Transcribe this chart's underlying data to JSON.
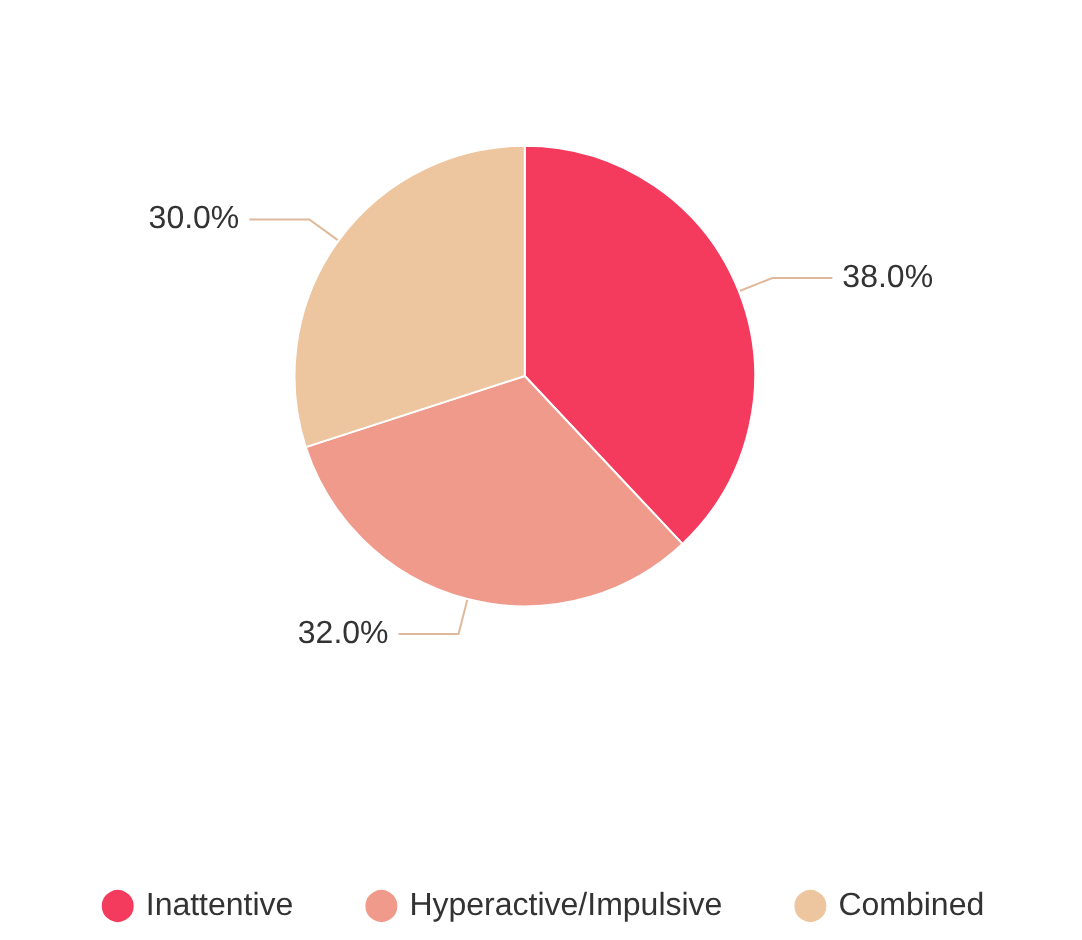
{
  "chart_data": {
    "type": "pie",
    "categories": [
      "Inattentive",
      "Hyperactive/Impulsive",
      "Combined"
    ],
    "values": [
      38.0,
      32.0,
      30.0
    ],
    "colors": [
      "#f43b5e",
      "#f09a8c",
      "#edc59f"
    ],
    "value_labels": [
      "38.0%",
      "32.0%",
      "30.0%"
    ],
    "legend": "bottom"
  }
}
